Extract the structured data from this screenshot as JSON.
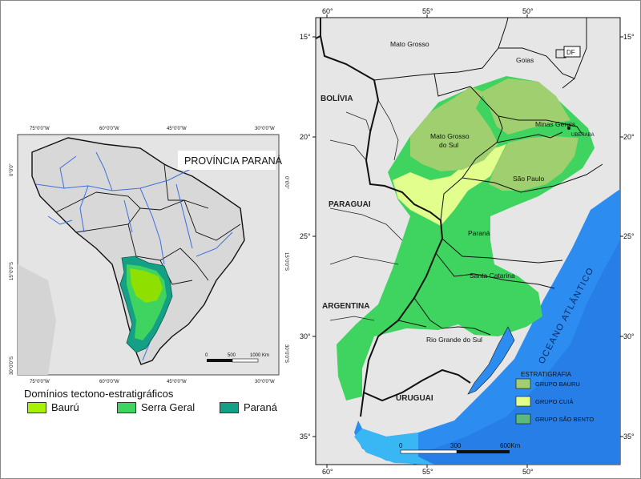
{
  "inset": {
    "title": "PROVÍNCIA PARANÁ",
    "lon_ticks_top": [
      "75°0'0\"W",
      "60°0'0\"W",
      "45°0'0\"W",
      "30°0'0\"W"
    ],
    "lon_ticks_bottom": [
      "75°0'0\"W",
      "60°0'0\"W",
      "45°0'0\"W",
      "30°0'0\"W"
    ],
    "lat_ticks": [
      "0°0'0\"",
      "15°0'0\"S",
      "30°0'0\"S"
    ],
    "scale": {
      "labels": [
        "0",
        "500",
        "1000 Km"
      ]
    },
    "colors": {
      "baur": "#8fe000",
      "serra": "#3fd35f",
      "parana": "#14a087",
      "ocean": "#e3e3e3",
      "land": "#d8d8d8",
      "rivers": "#3c6fe0"
    }
  },
  "legend": {
    "title": "Domínios tectono-estratigráficos",
    "items": [
      {
        "label": "Baurú",
        "color": "#a6f200"
      },
      {
        "label": "Serra Geral",
        "color": "#3fd35f"
      },
      {
        "label": "Paraná",
        "color": "#14a087"
      }
    ]
  },
  "main_map": {
    "lon_ticks": [
      "60°",
      "55°",
      "50°"
    ],
    "lat_ticks": [
      "15°",
      "20°",
      "25°",
      "30°",
      "35°"
    ],
    "places": {
      "mato_grosso": "Mato Grosso",
      "goias": "Goias",
      "df": "DF",
      "bolivia": "BOLÍVIA",
      "minas_gerais": "Minas Gerais",
      "uberaba": "UBERABA",
      "mato_grosso_do_sul": [
        "Mato Grosso",
        "do Sul"
      ],
      "sao_paulo": "São Paulo",
      "paraguai": "PARAGUAI",
      "parana": "Paraná",
      "santa_catarina": "Santa Catarina",
      "argentina": "ARGENTINA",
      "rio_grande_do_sul": "Rio Grande do Sul",
      "uruguai": "URUGUAI",
      "oceano": "OCEANO ATLÂNTICO"
    },
    "stratigraphy": {
      "title": "ESTRATIGRAFIA",
      "items": [
        {
          "label": "GRUPO BAURU",
          "color": "#9fcf6e"
        },
        {
          "label": "GRUPO CUIÁ",
          "color": "#e2ff8e"
        },
        {
          "label": "GRUPO SÃO BENTO",
          "color": "#5ab97c"
        }
      ]
    },
    "scale": {
      "labels": [
        "0",
        "300",
        "600Km"
      ]
    },
    "colors": {
      "land": "#e6e6e6",
      "serra": "#3fd35f",
      "bauru": "#9fcf6e",
      "caiua": "#e2ff8e",
      "ocean": "#2c8cf0"
    }
  }
}
